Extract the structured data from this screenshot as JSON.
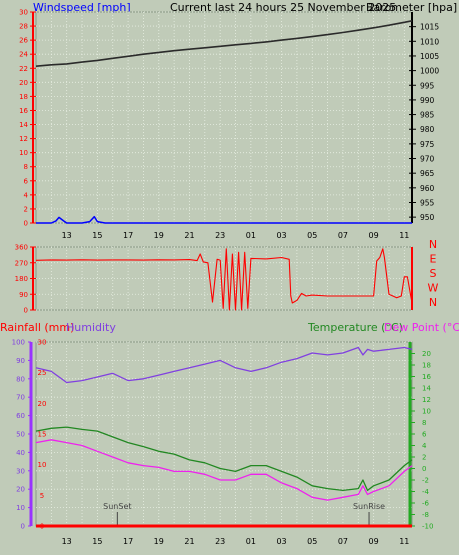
{
  "title": "Current last 24 hours 25 November 2025",
  "colors": {
    "background": "#c0cbb8",
    "grid": "#e8efe3",
    "wind_axis": "#ff0000",
    "wind_line": "#0000ff",
    "baro_axis": "#000000",
    "baro_line": "#2a2a2a",
    "dir_line": "#ff0000",
    "rain_axis": "#9933ff",
    "rain": "#ff0000",
    "humidity": "#8040e0",
    "temperature": "#228822",
    "dewpoint": "#ee22ee",
    "temp_axis": "#22aa22"
  },
  "time_ticks": [
    "13",
    "15",
    "17",
    "19",
    "21",
    "23",
    "01",
    "03",
    "05",
    "07",
    "09",
    "11"
  ],
  "chart_data": [
    {
      "type": "line",
      "id": "wind-baro",
      "left_label": "Windspeed [mph]",
      "right_label": "Barometer [hpa]",
      "left_ticks": [
        0,
        2,
        4,
        6,
        8,
        10,
        12,
        14,
        16,
        18,
        20,
        22,
        24,
        26,
        28,
        30
      ],
      "left_ylim": [
        0,
        30
      ],
      "right_ticks": [
        950,
        955,
        960,
        965,
        970,
        975,
        980,
        985,
        990,
        995,
        1000,
        1005,
        1010,
        1015
      ],
      "right_ylim": [
        948,
        1020
      ],
      "series": [
        {
          "axis": "left",
          "x": [
            11.0,
            11.5,
            12.0,
            12.3,
            12.5,
            12.8,
            13.0,
            13.5,
            14.0,
            14.5,
            14.8,
            15.0,
            15.5,
            16.0,
            18,
            20,
            22,
            24,
            26,
            28,
            30,
            32,
            34,
            35.5
          ],
          "values": [
            0,
            0,
            0,
            0.3,
            0.8,
            0.3,
            0,
            0,
            0,
            0.2,
            0.9,
            0.2,
            0,
            0,
            0,
            0,
            0,
            0,
            0,
            0,
            0,
            0,
            0,
            0
          ]
        },
        {
          "axis": "right",
          "x": [
            11.0,
            12,
            13,
            14,
            15,
            16,
            17,
            18,
            19,
            20,
            21,
            22,
            23,
            24,
            25,
            26,
            27,
            28,
            29,
            30,
            31,
            32,
            33,
            34,
            35,
            35.5
          ],
          "values": [
            1001.5,
            1002,
            1002.3,
            1002.9,
            1003.5,
            1004.2,
            1004.9,
            1005.6,
            1006.2,
            1006.8,
            1007.3,
            1007.8,
            1008.3,
            1008.8,
            1009.3,
            1009.8,
            1010.4,
            1011,
            1011.6,
            1012.3,
            1013,
            1013.8,
            1014.6,
            1015.5,
            1016.5,
            1017
          ]
        }
      ]
    },
    {
      "type": "line",
      "id": "wind-direction",
      "direction_labels": [
        "N",
        "W",
        "S",
        "E",
        "N"
      ],
      "ticks": [
        0,
        90,
        180,
        270,
        360
      ],
      "ylim": [
        0,
        360
      ],
      "x": [
        11.0,
        12,
        13,
        14,
        15,
        16,
        17,
        18,
        19,
        20,
        21,
        21.5,
        21.7,
        21.9,
        22.2,
        22.5,
        22.8,
        23.0,
        23.2,
        23.4,
        23.6,
        23.8,
        24.0,
        24.2,
        24.4,
        24.6,
        24.8,
        25,
        26,
        27,
        27.5,
        27.6,
        27.7,
        28,
        28.3,
        28.6,
        29,
        30,
        31,
        32,
        33,
        33.2,
        33.4,
        33.6,
        33.7,
        34,
        34.5,
        34.8,
        35,
        35.2,
        35.5
      ],
      "values": [
        284,
        286,
        285,
        287,
        285,
        286,
        286,
        285,
        287,
        286,
        288,
        282,
        320,
        275,
        270,
        45,
        290,
        285,
        10,
        350,
        0,
        320,
        0,
        330,
        0,
        330,
        10,
        295,
        292,
        300,
        290,
        80,
        40,
        55,
        95,
        80,
        85,
        80,
        80,
        80,
        80,
        280,
        300,
        350,
        300,
        90,
        70,
        80,
        190,
        190,
        40
      ]
    },
    {
      "type": "line",
      "id": "rain-humidity-temp",
      "rain_label": "Rainfall (mm)",
      "humidity_label": "Humidity",
      "temp_label": "Temperature (°C)",
      "dewpoint_label": "Dew Point (°C)",
      "rain_ticks": [
        0,
        5,
        10,
        15,
        20,
        25,
        30
      ],
      "rain_ylim": [
        0,
        30
      ],
      "humidity_ticks": [
        0,
        10,
        20,
        30,
        40,
        50,
        60,
        70,
        80,
        90,
        100
      ],
      "humidity_ylim": [
        0,
        100
      ],
      "temp_ticks": [
        -10,
        -8,
        -6,
        -4,
        -2,
        0,
        2,
        4,
        6,
        8,
        10,
        12,
        14,
        16,
        18,
        20
      ],
      "temp_ylim": [
        -10,
        22
      ],
      "markers": [
        "SunSet",
        "SunRise"
      ],
      "marker_x": [
        16.3,
        32.7
      ],
      "x": [
        11.0,
        12,
        13,
        14,
        15,
        16,
        17,
        18,
        19,
        20,
        21,
        22,
        23,
        24,
        25,
        26,
        27,
        28,
        29,
        30,
        31,
        32,
        32.3,
        32.6,
        33,
        34,
        35,
        35.5
      ],
      "series": [
        {
          "name": "Humidity",
          "axis": "humidity",
          "values": [
            86,
            84,
            78,
            79,
            81,
            83,
            79,
            80,
            82,
            84,
            86,
            88,
            90,
            86,
            84,
            86,
            89,
            91,
            94,
            93,
            94,
            97,
            93,
            96,
            95,
            96,
            97,
            96
          ]
        },
        {
          "name": "Temperature (°C)",
          "axis": "temp",
          "values": [
            6.5,
            7,
            7.2,
            6.8,
            6.5,
            5.5,
            4.5,
            3.8,
            3,
            2.5,
            1.5,
            1,
            0,
            -0.5,
            0.5,
            0.5,
            -0.5,
            -1.5,
            -3,
            -3.5,
            -3.8,
            -3.5,
            -2,
            -3.8,
            -3,
            -2,
            0.5,
            1.5
          ]
        },
        {
          "name": "Dew Point (°C)",
          "axis": "temp",
          "values": [
            4.5,
            5,
            4.5,
            4,
            3,
            2,
            1,
            0.5,
            0.2,
            -0.5,
            -0.5,
            -1,
            -2,
            -2,
            -1,
            -1,
            -2.5,
            -3.5,
            -5,
            -5.5,
            -5,
            -4.5,
            -3,
            -4.5,
            -4,
            -3,
            -0.5,
            0.5
          ]
        },
        {
          "name": "Rainfall (mm)",
          "axis": "rain",
          "values": [
            0,
            0,
            0,
            0,
            0,
            0,
            0,
            0,
            0,
            0,
            0,
            0,
            0,
            0,
            0,
            0,
            0,
            0,
            0,
            0,
            0,
            0,
            0,
            0,
            0,
            0,
            0,
            0
          ]
        }
      ]
    }
  ]
}
